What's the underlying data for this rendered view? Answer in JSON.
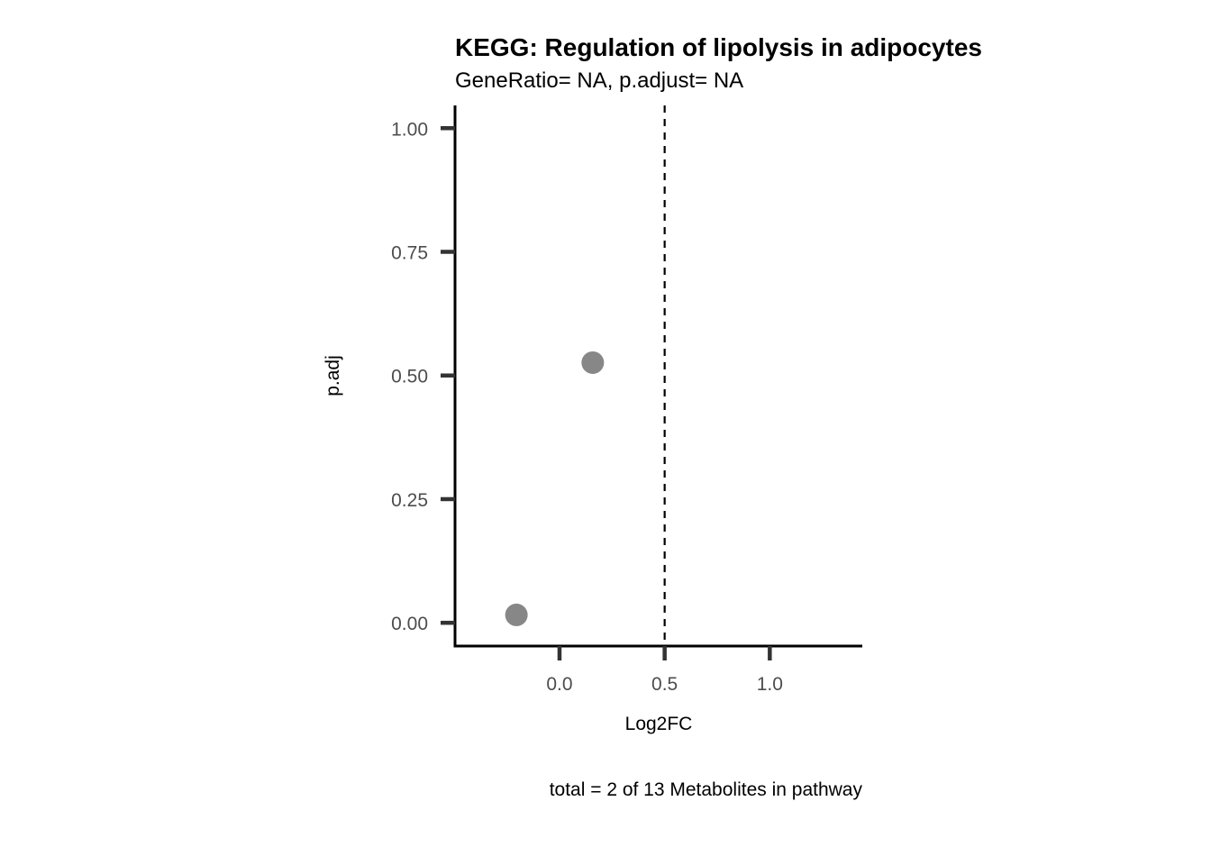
{
  "chart_data": {
    "type": "scatter",
    "title": "KEGG: Regulation of lipolysis in adipocytes",
    "subtitle": "GeneRatio= NA, p.adjust= NA",
    "xlabel": "Log2FC",
    "ylabel": "p.adj",
    "caption": "total = 2 of 13 Metabolites in pathway",
    "xlim": [
      -0.497,
      1.44
    ],
    "ylim": [
      -0.047,
      1.046
    ],
    "xticks": [
      0.0,
      0.5,
      1.0
    ],
    "xtick_labels": [
      "0.0",
      "0.5",
      "1.0"
    ],
    "yticks": [
      0,
      0.25,
      0.5,
      0.75,
      1.0
    ],
    "ytick_labels": [
      "0.00",
      "0.25",
      "0.50",
      "0.75",
      "1.00"
    ],
    "vline": {
      "x": 0.5,
      "style": "dashed",
      "color": "#000000"
    },
    "grid": false,
    "point_color": "#878787",
    "points": [
      {
        "x": -0.205,
        "y": 0.016
      },
      {
        "x": 0.158,
        "y": 0.526
      }
    ]
  }
}
